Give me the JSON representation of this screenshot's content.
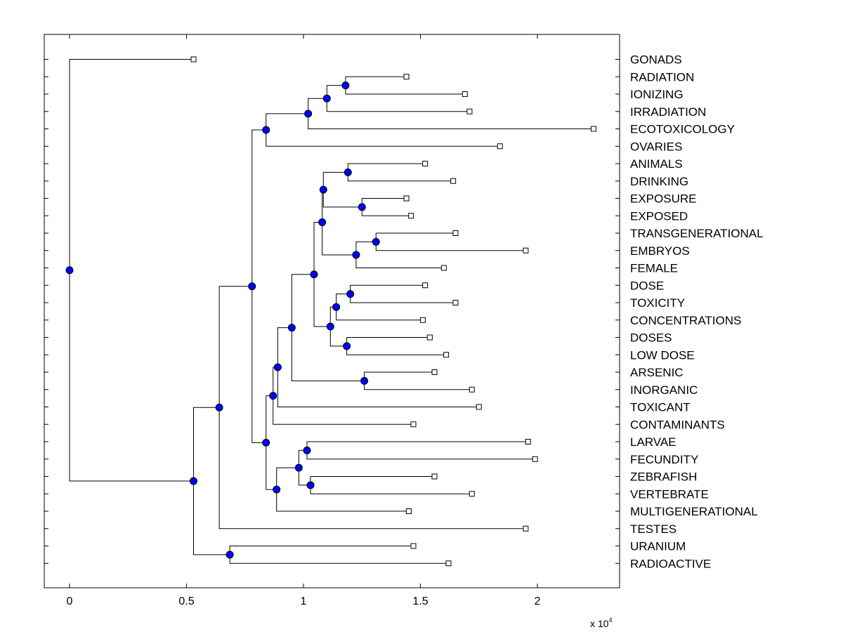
{
  "chart_data": {
    "type": "dendrogram",
    "x_axis": {
      "ticks": [
        0,
        0.5,
        1,
        1.5,
        2
      ],
      "tick_labels": [
        "0",
        "0.5",
        "1",
        "1.5",
        "2"
      ],
      "range": [
        -0.11,
        2.35
      ],
      "multiplier_text": "x 10",
      "multiplier_exponent": "4"
    },
    "leaves": [
      {
        "label": "GONADS",
        "value": 0.53
      },
      {
        "label": "RADIATION",
        "value": 1.44
      },
      {
        "label": "IONIZING",
        "value": 1.69
      },
      {
        "label": "IRRADIATION",
        "value": 1.71
      },
      {
        "label": "ECOTOXICOLOGY",
        "value": 2.24
      },
      {
        "label": "OVARIES",
        "value": 1.84
      },
      {
        "label": "ANIMALS",
        "value": 1.52
      },
      {
        "label": "DRINKING",
        "value": 1.64
      },
      {
        "label": "EXPOSURE",
        "value": 1.44
      },
      {
        "label": "EXPOSED",
        "value": 1.46
      },
      {
        "label": "TRANSGENERATIONAL",
        "value": 1.65
      },
      {
        "label": "EMBRYOS",
        "value": 1.95
      },
      {
        "label": "FEMALE",
        "value": 1.6
      },
      {
        "label": "DOSE",
        "value": 1.52
      },
      {
        "label": "TOXICITY",
        "value": 1.65
      },
      {
        "label": "CONCENTRATIONS",
        "value": 1.51
      },
      {
        "label": "DOSES",
        "value": 1.54
      },
      {
        "label": "LOW DOSE",
        "value": 1.61
      },
      {
        "label": "ARSENIC",
        "value": 1.56
      },
      {
        "label": "INORGANIC",
        "value": 1.72
      },
      {
        "label": "TOXICANT",
        "value": 1.75
      },
      {
        "label": "CONTAMINANTS",
        "value": 1.47
      },
      {
        "label": "LARVAE",
        "value": 1.96
      },
      {
        "label": "FECUNDITY",
        "value": 1.99
      },
      {
        "label": "ZEBRAFISH",
        "value": 1.56
      },
      {
        "label": "VERTEBRATE",
        "value": 1.72
      },
      {
        "label": "MULTIGENERATIONAL",
        "value": 1.45
      },
      {
        "label": "TESTES",
        "value": 1.95
      },
      {
        "label": "URANIUM",
        "value": 1.47
      },
      {
        "label": "RADIOACTIVE",
        "value": 1.62
      }
    ],
    "nodes": [
      {
        "id": "A",
        "value": 1.18,
        "children": [
          1,
          2
        ]
      },
      {
        "id": "B",
        "value": 1.1,
        "children": [
          "A",
          3
        ]
      },
      {
        "id": "C",
        "value": 1.02,
        "children": [
          "B",
          4
        ]
      },
      {
        "id": "D",
        "value": 0.84,
        "children": [
          "C",
          5
        ]
      },
      {
        "id": "E",
        "value": 1.19,
        "children": [
          6,
          7
        ]
      },
      {
        "id": "F",
        "value": 1.25,
        "children": [
          8,
          9
        ]
      },
      {
        "id": "G",
        "value": 1.085,
        "children": [
          "E",
          "F"
        ]
      },
      {
        "id": "H",
        "value": 1.31,
        "children": [
          10,
          11
        ]
      },
      {
        "id": "I",
        "value": 1.225,
        "children": [
          "H",
          12
        ]
      },
      {
        "id": "J",
        "value": 1.08,
        "children": [
          "G",
          "I"
        ]
      },
      {
        "id": "K",
        "value": 1.2,
        "children": [
          13,
          14
        ]
      },
      {
        "id": "L",
        "value": 1.14,
        "children": [
          "K",
          15
        ]
      },
      {
        "id": "M",
        "value": 1.185,
        "children": [
          16,
          17
        ]
      },
      {
        "id": "N",
        "value": 1.115,
        "children": [
          "L",
          "M"
        ]
      },
      {
        "id": "O",
        "value": 1.045,
        "children": [
          "J",
          "N"
        ]
      },
      {
        "id": "P",
        "value": 1.26,
        "children": [
          18,
          19
        ]
      },
      {
        "id": "Q",
        "value": 0.95,
        "children": [
          "O",
          "P"
        ]
      },
      {
        "id": "R",
        "value": 0.89,
        "children": [
          "Q",
          20
        ]
      },
      {
        "id": "S",
        "value": 0.87,
        "children": [
          "R",
          21
        ]
      },
      {
        "id": "T",
        "value": 1.015,
        "children": [
          22,
          23
        ]
      },
      {
        "id": "U",
        "value": 1.03,
        "children": [
          24,
          25
        ]
      },
      {
        "id": "V",
        "value": 0.98,
        "children": [
          "T",
          "U"
        ]
      },
      {
        "id": "W",
        "value": 0.885,
        "children": [
          "V",
          26
        ]
      },
      {
        "id": "X",
        "value": 0.84,
        "children": [
          "S",
          "W"
        ]
      },
      {
        "id": "Y",
        "value": 0.78,
        "children": [
          "D",
          "X"
        ]
      },
      {
        "id": "Z",
        "value": 0.64,
        "children": [
          "Y",
          27
        ]
      },
      {
        "id": "AA",
        "value": 0.685,
        "children": [
          28,
          29
        ]
      },
      {
        "id": "BB",
        "value": 0.53,
        "children": [
          "Z",
          "AA"
        ]
      },
      {
        "id": "ROOT",
        "value": 0.0,
        "children": [
          0,
          "BB"
        ]
      }
    ],
    "colors": {
      "node_fill": "#0000ff",
      "line": "#000000",
      "leaf_marker": "#ffffff"
    }
  }
}
